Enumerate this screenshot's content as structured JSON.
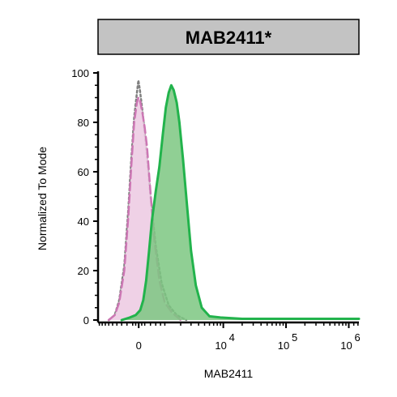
{
  "chart_data": {
    "type": "area",
    "title": "MAB2411*",
    "xlabel": "MAB2411",
    "ylabel": "Normalized To Mode",
    "ylim": [
      0,
      100
    ],
    "y_ticks": [
      0,
      20,
      40,
      60,
      80,
      100
    ],
    "x_scale": "biexponential",
    "x_ticks": [
      {
        "label": "0",
        "value": 0
      },
      {
        "label": "10",
        "exp": "4",
        "value": 10000
      },
      {
        "label": "10",
        "exp": "5",
        "value": 100000
      },
      {
        "label": "10",
        "exp": "6",
        "value": 1000000
      }
    ],
    "series": [
      {
        "style": "dotted",
        "stroke": "#808080",
        "fill": "none",
        "points": [
          [
            -1200,
            0
          ],
          [
            -900,
            2
          ],
          [
            -700,
            8
          ],
          [
            -500,
            22
          ],
          [
            -350,
            45
          ],
          [
            -250,
            65
          ],
          [
            -150,
            82
          ],
          [
            -60,
            92
          ],
          [
            -10,
            97
          ],
          [
            40,
            93
          ],
          [
            120,
            85
          ],
          [
            250,
            70
          ],
          [
            400,
            50
          ],
          [
            600,
            30
          ],
          [
            850,
            15
          ],
          [
            1200,
            6
          ],
          [
            1700,
            2
          ],
          [
            2500,
            0
          ]
        ]
      },
      {
        "style": "dashed",
        "stroke": "#cc77b4",
        "fill": "#ecc9e2",
        "points": [
          [
            -1200,
            0
          ],
          [
            -900,
            2
          ],
          [
            -700,
            7
          ],
          [
            -500,
            20
          ],
          [
            -350,
            42
          ],
          [
            -250,
            62
          ],
          [
            -150,
            80
          ],
          [
            -60,
            88
          ],
          [
            -10,
            90
          ],
          [
            40,
            89
          ],
          [
            120,
            84
          ],
          [
            200,
            78
          ],
          [
            280,
            70
          ],
          [
            400,
            52
          ],
          [
            550,
            32
          ],
          [
            750,
            16
          ],
          [
            1000,
            7
          ],
          [
            1400,
            3
          ],
          [
            2000,
            0
          ]
        ]
      },
      {
        "style": "solid",
        "stroke": "#22b34c",
        "fill": "#7dc781",
        "points": [
          [
            -600,
            0
          ],
          [
            -300,
            1
          ],
          [
            -100,
            2
          ],
          [
            50,
            4
          ],
          [
            150,
            8
          ],
          [
            250,
            16
          ],
          [
            350,
            28
          ],
          [
            450,
            40
          ],
          [
            600,
            52
          ],
          [
            750,
            62
          ],
          [
            900,
            75
          ],
          [
            1050,
            86
          ],
          [
            1200,
            92
          ],
          [
            1350,
            95
          ],
          [
            1500,
            93
          ],
          [
            1700,
            88
          ],
          [
            1900,
            80
          ],
          [
            2200,
            65
          ],
          [
            2600,
            45
          ],
          [
            3000,
            28
          ],
          [
            3600,
            14
          ],
          [
            4500,
            5
          ],
          [
            6000,
            1.5
          ],
          [
            9000,
            1
          ],
          [
            20000,
            0.5
          ],
          [
            100000,
            0.5
          ],
          [
            1000000,
            0.5
          ],
          [
            3000000,
            0.5
          ]
        ]
      }
    ]
  }
}
